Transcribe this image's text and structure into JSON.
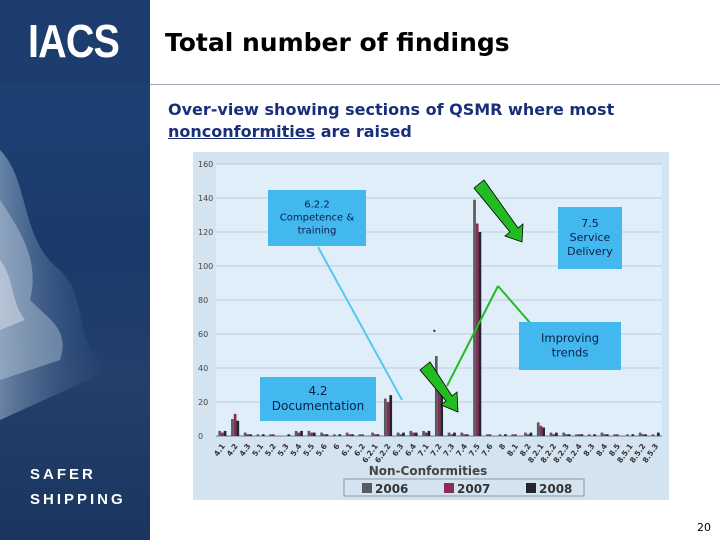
{
  "brand": {
    "logo": "IACS",
    "tagline_1": "SAFER",
    "tagline_2": "SHIPPING"
  },
  "slide": {
    "title": "Total number of findings",
    "subtitle_1": "Over-view showing sections of QSMR where most",
    "subtitle_2_underlined": "nonconformities",
    "subtitle_2_rest": " are raised",
    "page_number": "20"
  },
  "colors": {
    "sidebar": "#1c3d6e",
    "plot_bg": "#dfeef8",
    "bar_2006": "#5a5a60",
    "bar_2007": "#8a2d55",
    "bar_2008": "#252530",
    "callout_bg": "#42b8ee",
    "arrow_green": "#22bb22"
  },
  "chart_data": {
    "type": "bar",
    "xlabel": "Non-Conformities",
    "ylabel": "",
    "ylim": [
      0,
      160
    ],
    "yticks": [
      0,
      20,
      40,
      60,
      80,
      100,
      120,
      140,
      160
    ],
    "grid": true,
    "legend_position": "bottom",
    "categories": [
      "4.1",
      "4.2",
      "4.3",
      "5.1",
      "5.2",
      "5.3",
      "5.4",
      "5.5",
      "5.6",
      "6",
      "6.1",
      "6.2",
      "6.2.1",
      "6.2.2",
      "6.3",
      "6.4",
      "7.1",
      "7.2",
      "7.3",
      "7.4",
      "7.5",
      "7.6",
      "8",
      "8.1",
      "8.2",
      "8.2.1",
      "8.2.2",
      "8.2.3",
      "8.2.4",
      "8.3",
      "8.4",
      "8.5",
      "8.5.1",
      "8.5.2",
      "8.5.3"
    ],
    "series": [
      {
        "name": "2006",
        "color": "#5a5a60",
        "values": [
          3,
          10,
          2,
          1,
          1,
          0,
          3,
          3,
          2,
          1,
          2,
          1,
          2,
          22,
          2,
          3,
          3,
          47,
          2,
          2,
          139,
          1,
          1,
          1,
          2,
          8,
          2,
          2,
          1,
          1,
          2,
          1,
          1,
          2,
          1
        ]
      },
      {
        "name": "2007",
        "color": "#8a2d55",
        "values": [
          2,
          13,
          1,
          0,
          1,
          0,
          2,
          2,
          1,
          0,
          1,
          1,
          1,
          20,
          1,
          2,
          2,
          30,
          1,
          1,
          125,
          1,
          0,
          1,
          1,
          6,
          1,
          1,
          1,
          0,
          1,
          1,
          0,
          1,
          0
        ]
      },
      {
        "name": "2008",
        "color": "#252530",
        "values": [
          3,
          9,
          1,
          1,
          0,
          1,
          3,
          2,
          1,
          1,
          1,
          0,
          1,
          24,
          2,
          2,
          3,
          25,
          2,
          1,
          120,
          0,
          1,
          0,
          2,
          5,
          2,
          1,
          1,
          1,
          1,
          0,
          1,
          1,
          2
        ]
      }
    ],
    "annotations": [
      {
        "lines": [
          "6.2.2",
          "Competence &",
          "training"
        ]
      },
      {
        "lines": [
          "7.5",
          "Service",
          "Delivery"
        ]
      },
      {
        "lines": [
          "Improving",
          "trends"
        ]
      },
      {
        "lines": [
          "4.2",
          "Documentation"
        ]
      }
    ]
  }
}
